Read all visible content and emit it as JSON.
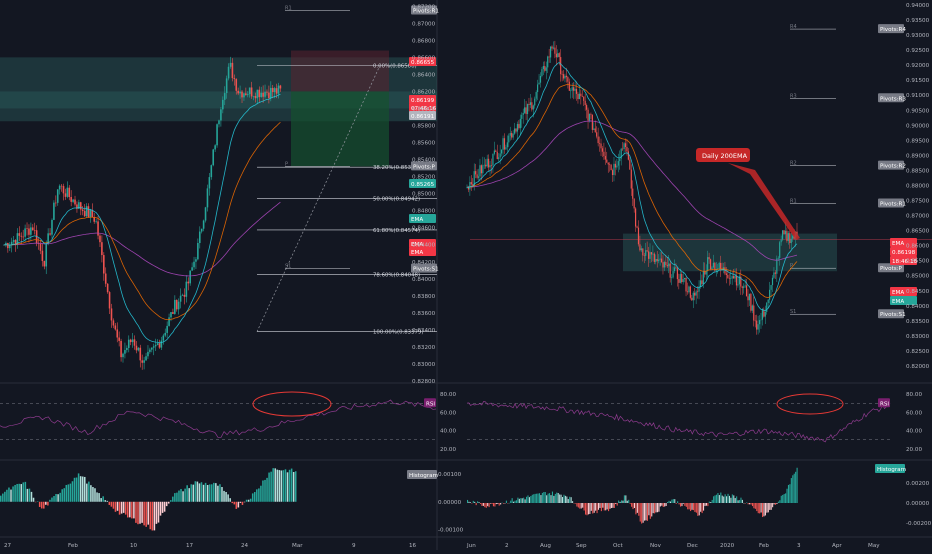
{
  "chart_data": [
    {
      "type": "candlestick",
      "panel": "left-main",
      "xlabels": [
        "27",
        "Feb",
        "10",
        "17",
        "24",
        "Mar",
        "9",
        "16"
      ],
      "ylim": [
        0.828,
        0.8725
      ],
      "yticks": [
        "0.87200",
        "0.87000",
        "0.86800",
        "0.86600",
        "0.86400",
        "0.86200",
        "0.86000",
        "0.85800",
        "0.85600",
        "0.85400",
        "0.85200",
        "0.85000",
        "0.84800",
        "0.84600",
        "0.84400",
        "0.84200",
        "0.84000",
        "0.83800",
        "0.83600",
        "0.83400",
        "0.83200",
        "0.83000",
        "0.82800"
      ],
      "fib_levels": [
        {
          "label": "0.00%(0.86506)",
          "value": 0.86506
        },
        {
          "label": "38.20%(0.85311)",
          "value": 0.85311
        },
        {
          "label": "50.00%(0.84942)",
          "value": 0.84942
        },
        {
          "label": "61.80%(0.84574)",
          "value": 0.84574
        },
        {
          "label": "78.60%(0.84048)",
          "value": 0.84048
        },
        {
          "label": "100.00%(0.83379)",
          "value": 0.83379
        }
      ],
      "pivot_labels": [
        {
          "label": "R1",
          "tag": "Pivots:R1",
          "value": 0.8715
        },
        {
          "label": "P",
          "tag": "Pivots:P",
          "value": 0.8532
        },
        {
          "label": "S1",
          "tag": "Pivots:S1",
          "value": 0.8412
        }
      ],
      "price_tags": [
        {
          "text": "0.86655",
          "color": "#f23645"
        },
        {
          "text": "0.86199",
          "color": "#f23645"
        },
        {
          "text": "07:46:16",
          "color": "#f23645"
        },
        {
          "text": "0.86191",
          "color": "#b2b5be"
        },
        {
          "text": "0.85265",
          "color": "#26a69a"
        },
        {
          "text": "EMA",
          "color": "#26a69a"
        },
        {
          "text": "EMA",
          "color": "#f23645"
        },
        {
          "text": "EMA",
          "color": "#f23645"
        }
      ]
    },
    {
      "type": "candlestick",
      "panel": "right-main",
      "annotation": "Daily 200EMA",
      "xlabels": [
        "Jun",
        "2",
        "Aug",
        "Sep",
        "Oct",
        "Nov",
        "Dec",
        "2020",
        "Feb",
        "3",
        "Apr",
        "May"
      ],
      "ylim": [
        0.815,
        0.941
      ],
      "yticks": [
        "0.94000",
        "0.93500",
        "0.93000",
        "0.92500",
        "0.92000",
        "0.91500",
        "0.91000",
        "0.90500",
        "0.90000",
        "0.89500",
        "0.89000",
        "0.88500",
        "0.88000",
        "0.87500",
        "0.87000",
        "0.86500",
        "0.86000",
        "0.85500",
        "0.85000",
        "0.84500",
        "0.84000",
        "0.83500",
        "0.83000",
        "0.82500",
        "0.82000"
      ],
      "pivot_labels": [
        {
          "label": "R4",
          "tag": "Pivots:R4",
          "value": 0.932
        },
        {
          "label": "R3",
          "tag": "Pivots:R3",
          "value": 0.909
        },
        {
          "label": "R2",
          "tag": "Pivots:R2",
          "value": 0.8866
        },
        {
          "label": "R1",
          "tag": "Pivots:R1",
          "value": 0.874
        },
        {
          "label": "P",
          "tag": "Pivots:P",
          "value": 0.8525
        },
        {
          "label": "S1",
          "tag": "Pivots:S1",
          "value": 0.8372
        }
      ],
      "price_tags": [
        {
          "text": "EMA",
          "color": "#f23645"
        },
        {
          "text": "0.86198",
          "color": "#f23645"
        },
        {
          "text": "18:46:16",
          "color": "#f23645"
        },
        {
          "text": "EMA",
          "color": "#f23645"
        },
        {
          "text": "EMA",
          "color": "#26a69a"
        }
      ]
    },
    {
      "type": "line",
      "panel": "left-rsi",
      "ylim": [
        10,
        90
      ],
      "yticks": [
        "80.00",
        "60.00",
        "40.00",
        "20.00"
      ],
      "dashed_levels": [
        70,
        30
      ],
      "tag": "RSI"
    },
    {
      "type": "line",
      "panel": "right-rsi",
      "ylim": [
        10,
        90
      ],
      "yticks": [
        "80.00",
        "60.00",
        "40.00",
        "20.00"
      ],
      "dashed_levels": [
        70,
        30
      ],
      "tag": "RSI"
    },
    {
      "type": "bar",
      "panel": "left-macd",
      "ylim": [
        -0.0012,
        0.0014
      ],
      "yticks": [
        "0.00100",
        "0.00000",
        "-0.00100"
      ],
      "tag": "Histogram"
    },
    {
      "type": "bar",
      "panel": "right-macd",
      "ylim": [
        -0.0032,
        0.004
      ],
      "yticks": [
        "0.00200",
        "0.00000",
        "-0.00200"
      ],
      "tag": "Histogram"
    }
  ],
  "colors": {
    "background": "#131722",
    "up": "#26a69a",
    "down": "#ef5350",
    "ema200": "#ab47bc",
    "ema_fast": "#26c6da",
    "ema_slow": "#ef6c00",
    "rsi": "#8e3b8e",
    "annotation": "#c62828",
    "zone": "#2a5a5a"
  }
}
